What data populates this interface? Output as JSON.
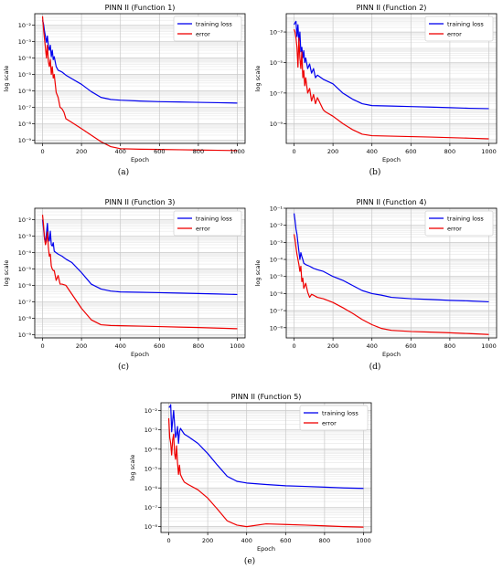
{
  "chart_data": [
    {
      "type": "line",
      "title": "PINN II (Function 1)",
      "xlabel": "Epoch",
      "ylabel": "log scale",
      "caption": "(a)",
      "yscale": "log",
      "xlim": [
        -40,
        1040
      ],
      "ylim_exp": [
        -9.2,
        -1.3
      ],
      "xticks": [
        0,
        200,
        400,
        600,
        800,
        1000
      ],
      "yticks_exp": [
        -9,
        -8,
        -7,
        -6,
        -5,
        -4,
        -3,
        -2
      ],
      "grid": true,
      "legend": "top-right",
      "series": [
        {
          "name": "training loss",
          "color": "#0000ee",
          "x": [
            0,
            5,
            10,
            15,
            20,
            25,
            30,
            35,
            40,
            45,
            50,
            55,
            60,
            70,
            80,
            90,
            100,
            120,
            150,
            200,
            250,
            300,
            350,
            400,
            500,
            600,
            700,
            800,
            900,
            1000
          ],
          "y": [
            0.02,
            0.012,
            0.0045,
            0.002,
            0.0009,
            0.0022,
            0.0005,
            0.0003,
            0.0006,
            0.00012,
            0.0003,
            8e-05,
            0.00012,
            3e-05,
            1.8e-05,
            1.6e-05,
            1.4e-05,
            9e-06,
            5.5e-06,
            2.5e-06,
            9e-07,
            4e-07,
            3e-07,
            2.7e-07,
            2.4e-07,
            2.2e-07,
            2.1e-07,
            2e-07,
            1.9e-07,
            1.8e-07
          ]
        },
        {
          "name": "error",
          "color": "#ee0000",
          "x": [
            0,
            5,
            10,
            15,
            20,
            25,
            30,
            35,
            40,
            45,
            50,
            55,
            60,
            70,
            80,
            90,
            100,
            110,
            120,
            150,
            200,
            250,
            300,
            350,
            400,
            500,
            600,
            700,
            800,
            900,
            1000
          ],
          "y": [
            0.035,
            0.006,
            0.0015,
            0.0004,
            0.0001,
            0.0006,
            6e-05,
            3e-05,
            8e-05,
            1e-05,
            3e-05,
            6e-06,
            1e-05,
            8e-07,
            4e-07,
            1e-07,
            8e-08,
            5e-08,
            2e-08,
            1.2e-08,
            5e-09,
            2e-09,
            8e-10,
            4e-10,
            3e-10,
            2.8e-10,
            2.7e-10,
            2.6e-10,
            2.5e-10,
            2.4e-10,
            2.3e-10
          ]
        }
      ]
    },
    {
      "type": "line",
      "title": "PINN II (Function 2)",
      "xlabel": "Epoch",
      "ylabel": "log scale",
      "caption": "(b)",
      "yscale": "log",
      "xlim": [
        -40,
        1040
      ],
      "ylim_exp": [
        -10.3,
        -1.8
      ],
      "xticks": [
        0,
        200,
        400,
        600,
        800,
        1000
      ],
      "yticks_exp": [
        -9,
        -7,
        -5,
        -3
      ],
      "grid": true,
      "legend": "top-right",
      "series": [
        {
          "name": "training loss",
          "color": "#0000ee",
          "x": [
            0,
            5,
            10,
            15,
            20,
            25,
            30,
            35,
            40,
            45,
            50,
            55,
            60,
            70,
            80,
            90,
            100,
            110,
            120,
            150,
            200,
            250,
            300,
            350,
            400,
            500,
            600,
            700,
            800,
            900,
            1000
          ],
          "y": [
            0.003,
            0.004,
            0.005,
            0.0005,
            0.003,
            0.0002,
            0.001,
            5e-05,
            0.0001,
            2e-05,
            6e-05,
            1e-05,
            2e-05,
            4e-06,
            8e-06,
            2e-06,
            4e-06,
            1e-06,
            1.5e-06,
            8e-07,
            4e-07,
            1e-07,
            4e-08,
            2e-08,
            1.5e-08,
            1.4e-08,
            1.3e-08,
            1.2e-08,
            1.1e-08,
            1e-08,
            9.5e-09
          ]
        },
        {
          "name": "error",
          "color": "#ee0000",
          "x": [
            0,
            5,
            10,
            15,
            20,
            25,
            30,
            35,
            40,
            45,
            50,
            55,
            60,
            70,
            80,
            90,
            100,
            110,
            120,
            150,
            160,
            200,
            250,
            300,
            350,
            400,
            500,
            600,
            700,
            800,
            900,
            1000
          ],
          "y": [
            0.0015,
            0.001,
            0.0004,
            0.0001,
            5e-06,
            0.0004,
            2e-05,
            4e-06,
            5e-05,
            1e-06,
            3e-06,
            3e-07,
            1e-06,
            1e-07,
            2e-07,
            3e-08,
            8e-08,
            2e-08,
            5e-08,
            8e-09,
            6e-09,
            3e-09,
            1e-09,
            4e-10,
            2e-10,
            1.6e-10,
            1.5e-10,
            1.4e-10,
            1.3e-10,
            1.2e-10,
            1.1e-10,
            1e-10
          ]
        }
      ]
    },
    {
      "type": "line",
      "title": "PINN II (Function 3)",
      "xlabel": "Epoch",
      "ylabel": "log scale",
      "caption": "(c)",
      "yscale": "log",
      "xlim": [
        -40,
        1040
      ],
      "ylim_exp": [
        -9.2,
        -1.3
      ],
      "xticks": [
        0,
        200,
        400,
        600,
        800,
        1000
      ],
      "yticks_exp": [
        -9,
        -8,
        -7,
        -6,
        -5,
        -4,
        -3,
        -2
      ],
      "grid": true,
      "legend": "top-right",
      "series": [
        {
          "name": "training loss",
          "color": "#0000ee",
          "x": [
            0,
            5,
            10,
            15,
            20,
            25,
            30,
            35,
            40,
            45,
            50,
            55,
            60,
            80,
            100,
            120,
            150,
            200,
            250,
            300,
            350,
            400,
            500,
            600,
            700,
            800,
            900,
            1000
          ],
          "y": [
            0.01,
            0.003,
            0.0007,
            0.0004,
            0.0015,
            0.006,
            0.0008,
            0.0005,
            0.002,
            0.0003,
            0.00025,
            0.0004,
            0.00012,
            8e-05,
            6e-05,
            4e-05,
            2.5e-05,
            6e-06,
            1.2e-06,
            6e-07,
            4.5e-07,
            4e-07,
            3.8e-07,
            3.6e-07,
            3.4e-07,
            3.2e-07,
            3e-07,
            2.8e-07
          ]
        },
        {
          "name": "error",
          "color": "#ee0000",
          "x": [
            0,
            5,
            10,
            15,
            20,
            25,
            30,
            35,
            40,
            45,
            50,
            55,
            60,
            70,
            80,
            90,
            100,
            120,
            150,
            200,
            250,
            300,
            350,
            400,
            500,
            600,
            700,
            800,
            900,
            1000
          ],
          "y": [
            0.02,
            0.005,
            0.0008,
            0.0003,
            0.0005,
            0.0018,
            0.0002,
            6e-05,
            8e-05,
            1.5e-05,
            1e-05,
            8e-06,
            8e-06,
            2e-06,
            4e-06,
            1.2e-06,
            1.2e-06,
            1e-06,
            3e-07,
            4e-08,
            8e-09,
            4e-09,
            3.6e-09,
            3.5e-09,
            3.3e-09,
            3.1e-09,
            2.9e-09,
            2.7e-09,
            2.5e-09,
            2.3e-09
          ]
        }
      ]
    },
    {
      "type": "line",
      "title": "PINN II (Function 4)",
      "xlabel": "Epoch",
      "ylabel": "log scale",
      "caption": "(d)",
      "yscale": "log",
      "xlim": [
        -40,
        1040
      ],
      "ylim_exp": [
        -8.6,
        -1
      ],
      "xticks": [
        0,
        200,
        400,
        600,
        800,
        1000
      ],
      "yticks_exp": [
        -8,
        -7,
        -6,
        -5,
        -4,
        -3,
        -2,
        -1
      ],
      "grid": true,
      "legend": "top-right",
      "series": [
        {
          "name": "training loss",
          "color": "#0000ee",
          "x": [
            0,
            5,
            10,
            15,
            20,
            25,
            30,
            35,
            40,
            45,
            50,
            60,
            80,
            100,
            120,
            150,
            200,
            250,
            300,
            350,
            400,
            450,
            500,
            600,
            700,
            800,
            900,
            1000
          ],
          "y": [
            0.05,
            0.02,
            0.006,
            0.003,
            0.0009,
            0.0003,
            0.0001,
            0.00025,
            0.00015,
            0.0001,
            6e-05,
            5e-05,
            4e-05,
            3e-05,
            2.5e-05,
            2e-05,
            1e-05,
            6e-06,
            3e-06,
            1.5e-06,
            1e-06,
            8e-07,
            6e-07,
            5e-07,
            4.5e-07,
            4e-07,
            3.7e-07,
            3.3e-07
          ]
        },
        {
          "name": "error",
          "color": "#ee0000",
          "x": [
            0,
            5,
            10,
            15,
            20,
            25,
            30,
            35,
            40,
            45,
            50,
            60,
            70,
            80,
            90,
            100,
            120,
            150,
            200,
            250,
            300,
            350,
            400,
            450,
            500,
            600,
            700,
            800,
            900,
            1000
          ],
          "y": [
            0.003,
            0.0015,
            0.0005,
            0.0002,
            0.0001,
            5e-05,
            2e-05,
            4e-05,
            5e-06,
            8e-06,
            2e-06,
            4e-06,
            1.2e-06,
            6e-07,
            9e-07,
            8e-07,
            6e-07,
            5e-07,
            3e-07,
            1.5e-07,
            7e-08,
            3e-08,
            1.5e-08,
            9e-09,
            7e-09,
            6e-09,
            5.5e-09,
            5e-09,
            4.5e-09,
            4e-09
          ]
        }
      ]
    },
    {
      "type": "line",
      "title": "PINN II (Function 5)",
      "xlabel": "Epoch",
      "ylabel": "log scale",
      "caption": "(e)",
      "yscale": "log",
      "xlim": [
        -40,
        1040
      ],
      "ylim_exp": [
        -8.3,
        -1.6
      ],
      "xticks": [
        0,
        200,
        400,
        600,
        800,
        1000
      ],
      "yticks_exp": [
        -8,
        -7,
        -6,
        -5,
        -4,
        -3,
        -2
      ],
      "grid": true,
      "legend": "top-right",
      "series": [
        {
          "name": "training loss",
          "color": "#0000ee",
          "x": [
            0,
            5,
            10,
            15,
            20,
            25,
            30,
            35,
            40,
            45,
            50,
            55,
            60,
            80,
            100,
            150,
            200,
            250,
            300,
            350,
            400,
            500,
            600,
            700,
            800,
            900,
            1000
          ],
          "y": [
            0.015,
            0.015,
            0.02,
            0.0008,
            0.003,
            0.01,
            0.002,
            0.0004,
            0.0006,
            0.0015,
            0.0002,
            0.0008,
            0.0012,
            0.0006,
            0.00045,
            0.0002,
            6e-05,
            1.5e-05,
            4e-06,
            2.2e-06,
            1.8e-06,
            1.5e-06,
            1.3e-06,
            1.2e-06,
            1.1e-06,
            1e-06,
            9.5e-07
          ]
        },
        {
          "name": "error",
          "color": "#ee0000",
          "x": [
            0,
            5,
            10,
            15,
            20,
            25,
            30,
            35,
            40,
            45,
            50,
            55,
            60,
            70,
            80,
            100,
            150,
            200,
            250,
            300,
            350,
            400,
            500,
            600,
            700,
            800,
            900,
            1000
          ],
          "y": [
            0.004,
            0.0004,
            0.0002,
            5e-05,
            0.0003,
            0.0006,
            6e-05,
            3e-05,
            0.00015,
            2e-05,
            5e-06,
            1.5e-05,
            5e-06,
            3e-06,
            2e-06,
            1.5e-06,
            8e-07,
            3e-07,
            8e-08,
            2e-08,
            1.2e-08,
            1e-08,
            1.4e-08,
            1.3e-08,
            1.2e-08,
            1.1e-08,
            1e-08,
            9.5e-09
          ]
        }
      ]
    }
  ]
}
